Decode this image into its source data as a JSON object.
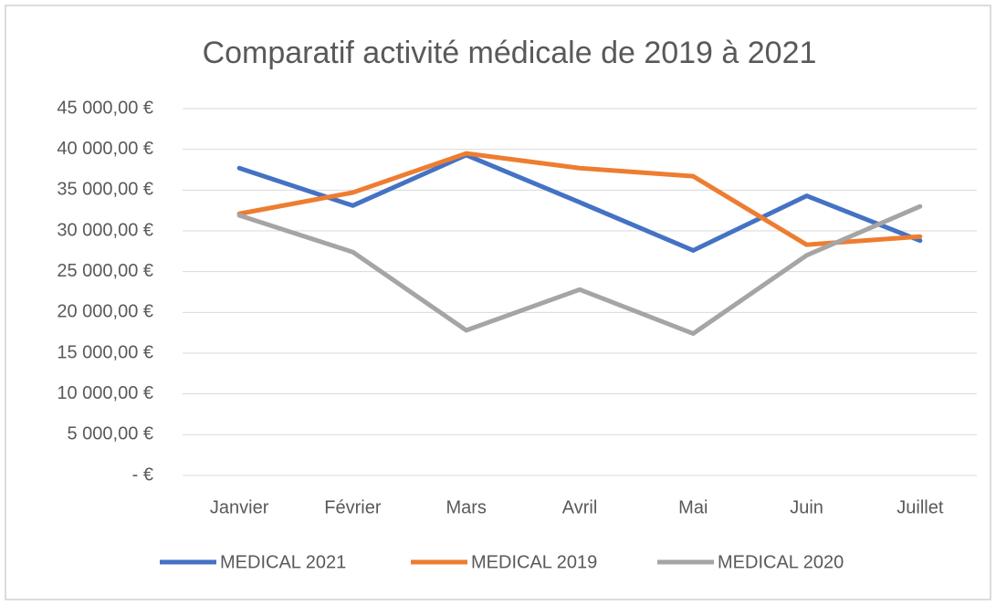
{
  "chart_data": {
    "type": "line",
    "title": "Comparatif activité médicale de 2019 à 2021",
    "categories": [
      "Janvier",
      "Février",
      "Mars",
      "Avril",
      "Mai",
      "Juin",
      "Juillet"
    ],
    "series": [
      {
        "name": "MEDICAL 2021",
        "color": "#4472c4",
        "values": [
          37700,
          33100,
          39300,
          33500,
          27600,
          34300,
          28800
        ]
      },
      {
        "name": "MEDICAL 2019",
        "color": "#ed7d31",
        "values": [
          32100,
          34700,
          39500,
          37700,
          36700,
          28300,
          29300
        ]
      },
      {
        "name": "MEDICAL 2020",
        "color": "#a5a5a5",
        "values": [
          31900,
          27400,
          17800,
          22800,
          17400,
          27000,
          33000
        ]
      }
    ],
    "ylim": [
      0,
      45000
    ],
    "yticks": [
      {
        "value": 0,
        "label": "- €"
      },
      {
        "value": 5000,
        "label": "5 000,00 €"
      },
      {
        "value": 10000,
        "label": "10 000,00 €"
      },
      {
        "value": 15000,
        "label": "15 000,00 €"
      },
      {
        "value": 20000,
        "label": "20 000,00 €"
      },
      {
        "value": 25000,
        "label": "25 000,00 €"
      },
      {
        "value": 30000,
        "label": "30 000,00 €"
      },
      {
        "value": 35000,
        "label": "35 000,00 €"
      },
      {
        "value": 40000,
        "label": "40 000,00 €"
      },
      {
        "value": 45000,
        "label": "45 000,00 €"
      }
    ],
    "grid": true,
    "legend": "bottom"
  }
}
